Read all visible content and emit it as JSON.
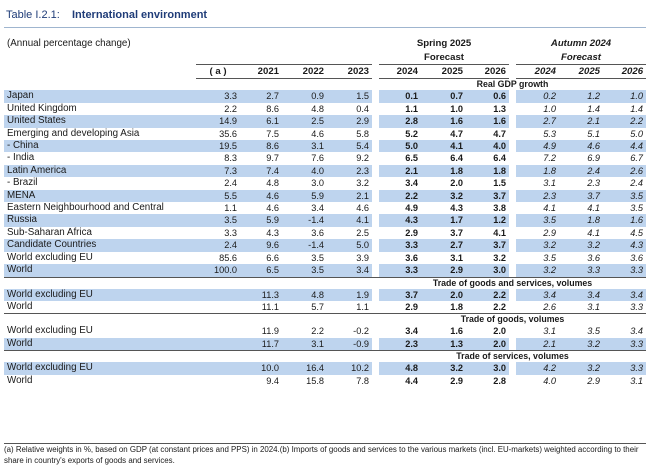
{
  "title": {
    "number": "Table I.2.1:",
    "text": "International environment"
  },
  "header": {
    "unit": "(Annual percentage change)",
    "group_spring": "Spring 2025",
    "group_autumn": "Autumn 2024",
    "forecast_spring": "Forecast",
    "forecast_autumn": "Forecast",
    "col_a": "( a )",
    "years": [
      "2021",
      "2022",
      "2023",
      "2024",
      "2025",
      "2026",
      "2024",
      "2025",
      "2026"
    ]
  },
  "sections": {
    "gdp": "Real GDP growth",
    "trade_gs": "Trade of goods and services, volumes",
    "trade_g": "Trade of goods, volumes",
    "trade_s": "Trade of services, volumes"
  },
  "gdp_rows": [
    {
      "label": "Japan",
      "hi": true,
      "values": [
        "3.3",
        "2.7",
        "0.9",
        "1.5",
        "0.1",
        "0.7",
        "0.6",
        "0.2",
        "1.2",
        "1.0"
      ]
    },
    {
      "label": "United Kingdom",
      "hi": false,
      "values": [
        "2.2",
        "8.6",
        "4.8",
        "0.4",
        "1.1",
        "1.0",
        "1.3",
        "1.0",
        "1.4",
        "1.4"
      ]
    },
    {
      "label": "United States",
      "hi": true,
      "values": [
        "14.9",
        "6.1",
        "2.5",
        "2.9",
        "2.8",
        "1.6",
        "1.6",
        "2.7",
        "2.1",
        "2.2"
      ]
    },
    {
      "label": "Emerging and developing Asia",
      "hi": false,
      "values": [
        "35.6",
        "7.5",
        "4.6",
        "5.8",
        "5.2",
        "4.7",
        "4.7",
        "5.3",
        "5.1",
        "5.0"
      ]
    },
    {
      "label": "- China",
      "hi": true,
      "values": [
        "19.5",
        "8.6",
        "3.1",
        "5.4",
        "5.0",
        "4.1",
        "4.0",
        "4.9",
        "4.6",
        "4.4"
      ]
    },
    {
      "label": "- India",
      "hi": false,
      "values": [
        "8.3",
        "9.7",
        "7.6",
        "9.2",
        "6.5",
        "6.4",
        "6.4",
        "7.2",
        "6.9",
        "6.7"
      ]
    },
    {
      "label": "Latin America",
      "hi": true,
      "values": [
        "7.3",
        "7.4",
        "4.0",
        "2.3",
        "2.1",
        "1.8",
        "1.8",
        "1.8",
        "2.4",
        "2.6"
      ]
    },
    {
      "label": "- Brazil",
      "hi": false,
      "values": [
        "2.4",
        "4.8",
        "3.0",
        "3.2",
        "3.4",
        "2.0",
        "1.5",
        "3.1",
        "2.3",
        "2.4"
      ]
    },
    {
      "label": "MENA",
      "hi": true,
      "values": [
        "5.5",
        "4.6",
        "5.9",
        "2.1",
        "2.2",
        "3.2",
        "3.7",
        "2.3",
        "3.7",
        "3.5"
      ]
    },
    {
      "label": "Eastern Neighbourhood and Central",
      "hi": false,
      "values": [
        "1.1",
        "4.6",
        "3.4",
        "4.6",
        "4.9",
        "4.3",
        "3.8",
        "4.1",
        "4.1",
        "3.5"
      ]
    },
    {
      "label": "Russia",
      "hi": true,
      "values": [
        "3.5",
        "5.9",
        "-1.4",
        "4.1",
        "4.3",
        "1.7",
        "1.2",
        "3.5",
        "1.8",
        "1.6"
      ]
    },
    {
      "label": "Sub-Saharan Africa",
      "hi": false,
      "values": [
        "3.3",
        "4.3",
        "3.6",
        "2.5",
        "2.9",
        "3.7",
        "4.1",
        "2.9",
        "4.1",
        "4.5"
      ]
    },
    {
      "label": "Candidate Countries",
      "hi": true,
      "values": [
        "2.4",
        "9.6",
        "-1.4",
        "5.0",
        "3.3",
        "2.7",
        "3.7",
        "3.2",
        "3.2",
        "4.3"
      ]
    },
    {
      "label": "World excluding EU",
      "hi": false,
      "values": [
        "85.6",
        "6.6",
        "3.5",
        "3.9",
        "3.6",
        "3.1",
        "3.2",
        "3.5",
        "3.6",
        "3.6"
      ]
    },
    {
      "label": "World",
      "hi": true,
      "values": [
        "100.0",
        "6.5",
        "3.5",
        "3.4",
        "3.3",
        "2.9",
        "3.0",
        "3.2",
        "3.3",
        "3.3"
      ]
    }
  ],
  "trade_gs_rows": [
    {
      "label": "World excluding EU",
      "hi": true,
      "values": [
        "",
        "11.3",
        "4.8",
        "1.9",
        "3.7",
        "2.0",
        "2.2",
        "3.4",
        "3.4",
        "3.4"
      ]
    },
    {
      "label": "World",
      "hi": false,
      "values": [
        "",
        "11.1",
        "5.7",
        "1.1",
        "2.9",
        "1.8",
        "2.2",
        "2.6",
        "3.1",
        "3.3"
      ]
    }
  ],
  "trade_g_rows": [
    {
      "label": "World excluding EU",
      "hi": false,
      "values": [
        "",
        "11.9",
        "2.2",
        "-0.2",
        "3.4",
        "1.6",
        "2.0",
        "3.1",
        "3.5",
        "3.4"
      ]
    },
    {
      "label": "World",
      "hi": true,
      "values": [
        "",
        "11.7",
        "3.1",
        "-0.9",
        "2.3",
        "1.3",
        "2.0",
        "2.1",
        "3.2",
        "3.3"
      ]
    }
  ],
  "trade_s_rows": [
    {
      "label": "World excluding EU",
      "hi": true,
      "values": [
        "",
        "10.0",
        "16.4",
        "10.2",
        "4.8",
        "3.2",
        "3.0",
        "4.2",
        "3.2",
        "3.3"
      ]
    },
    {
      "label": "World",
      "hi": false,
      "values": [
        "",
        "9.4",
        "15.8",
        "7.8",
        "4.4",
        "2.9",
        "2.8",
        "4.0",
        "2.9",
        "3.1"
      ]
    }
  ],
  "notes": "(a)  Relative weights in %, based on GDP (at constant prices and PPS) in 2024.(b)  Imports of goods and services to the various markets (incl. EU-markets) weighted according to their share in country's exports of goods and services."
}
